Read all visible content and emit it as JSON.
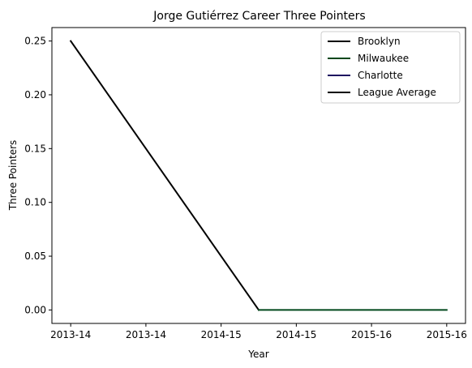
{
  "chart_data": {
    "type": "line",
    "title": "Jorge Gutiérrez  Career Three Pointers",
    "xlabel": "Year",
    "ylabel": "Three Pointers",
    "x_tick_labels": [
      "2013-14",
      "2013-14",
      "2014-15",
      "2014-15",
      "2015-16",
      "2015-16"
    ],
    "y_ticks": [
      0.0,
      0.05,
      0.1,
      0.15,
      0.2,
      0.25
    ],
    "y_tick_labels": [
      "0.00",
      "0.05",
      "0.10",
      "0.15",
      "0.20",
      "0.25"
    ],
    "xlim": [
      -0.25,
      5.25
    ],
    "ylim": [
      -0.0125,
      0.2625
    ],
    "grid": false,
    "legend_position": "top-right",
    "series": [
      {
        "name": "Brooklyn",
        "color": "#000000",
        "x": [
          0,
          2.5
        ],
        "y": [
          0.25,
          0.0
        ]
      },
      {
        "name": "Milwaukee",
        "color": "#00471B",
        "x": [
          2.5,
          5
        ],
        "y": [
          0.0,
          0.0
        ]
      },
      {
        "name": "Charlotte",
        "color": "#1D1160",
        "x": [],
        "y": []
      },
      {
        "name": "League Average",
        "color": "#000000",
        "x": [],
        "y": []
      }
    ]
  }
}
